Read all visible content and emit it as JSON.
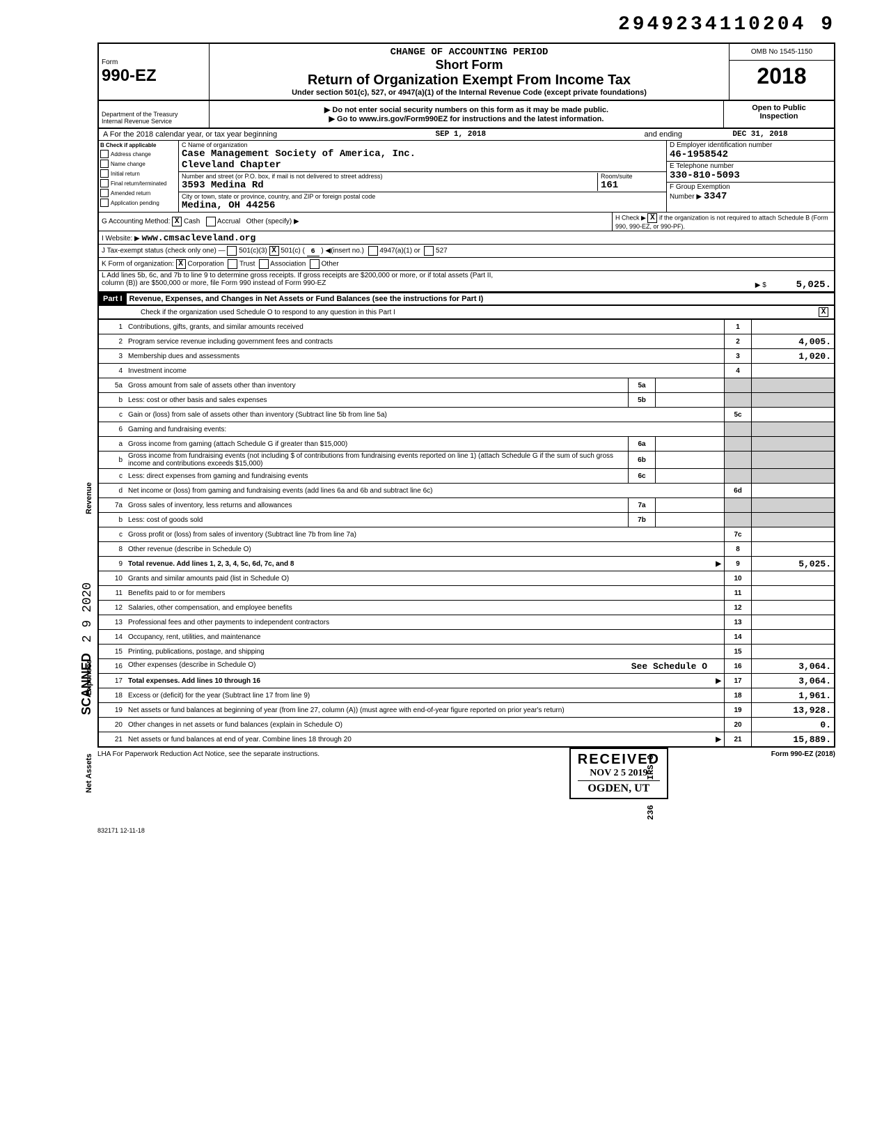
{
  "top_number": "2949234110204 9",
  "form": {
    "prefix": "Form",
    "number": "990-EZ",
    "change_line": "CHANGE OF ACCOUNTING PERIOD",
    "short_form": "Short Form",
    "title": "Return of Organization Exempt From Income Tax",
    "under": "Under section 501(c), 527, or 4947(a)(1) of the Internal Revenue Code (except private foundations)",
    "warn": "▶ Do not enter social security numbers on this form as it may be made public.",
    "goto": "▶ Go to www.irs.gov/Form990EZ for instructions and the latest information.",
    "omb": "OMB No 1545-1150",
    "year": "2018",
    "open": "Open to Public",
    "inspection": "Inspection",
    "dept1": "Department of the Treasury",
    "dept2": "Internal Revenue Service"
  },
  "line_a": {
    "label": "A  For the 2018 calendar year, or tax year beginning",
    "begin": "SEP 1, 2018",
    "and_ending": "and ending",
    "end": "DEC 31, 2018"
  },
  "block_b": {
    "header": "B  Check if applicable",
    "checks": [
      "Address change",
      "Name change",
      "Initial return",
      "Final return/terminated",
      "Amended return",
      "Application pending"
    ],
    "c_label": "C Name of organization",
    "org_name": "Case Management Society of America, Inc.",
    "chapter": "Cleveland Chapter",
    "addr_label": "Number and street (or P.O. box, if mail is not delivered to street address)",
    "addr": "3593 Medina Rd",
    "room_label": "Room/suite",
    "room": "161",
    "city_label": "City or town, state or province, country, and ZIP or foreign postal code",
    "city": "Medina, OH  44256",
    "d_label": "D Employer identification number",
    "ein": "46-1958542",
    "e_label": "E Telephone number",
    "phone": "330-810-5093",
    "f_label": "F Group Exemption",
    "f_num_label": "Number ▶",
    "f_num": "3347"
  },
  "lines": {
    "g": "G  Accounting Method:",
    "g_cash": "Cash",
    "g_accrual": "Accrual",
    "g_other": "Other (specify) ▶",
    "h": "H Check ▶",
    "h_rest": "if the organization is not required to attach Schedule B (Form 990, 990-EZ, or 990-PF).",
    "i": "I   Website: ▶",
    "i_val": "www.cmsacleveland.org",
    "j": "J   Tax-exempt status (check only one) —",
    "j_501c3": "501(c)(3)",
    "j_501c": "501(c) (",
    "j_501c_n": "6",
    "j_insert": ") ◀(insert no.)",
    "j_4947": "4947(a)(1) or",
    "j_527": "527",
    "k": "K  Form of organization:",
    "k_corp": "Corporation",
    "k_trust": "Trust",
    "k_assoc": "Association",
    "k_other": "Other",
    "l1": "L  Add lines 5b, 6c, and 7b to line 9 to determine gross receipts. If gross receipts are $200,000 or more, or if total assets (Part II,",
    "l2": "column (B)) are $500,000 or more, file Form 990 instead of Form 990-EZ",
    "l_arrow": "▶  $",
    "l_amt": "5,025."
  },
  "part1": {
    "label": "Part I",
    "title": "Revenue, Expenses, and Changes in Net Assets or Fund Balances (see the instructions for Part I)",
    "check_line": "Check if the organization used Schedule O to respond to any question in this Part I",
    "check_x": "X"
  },
  "revenue_label": "Revenue",
  "expenses_label": "Expenses",
  "netassets_label": "Net Assets",
  "rows": [
    {
      "n": "1",
      "t": "Contributions, gifts, grants, and similar amounts received",
      "r": "1",
      "a": ""
    },
    {
      "n": "2",
      "t": "Program service revenue including government fees and contracts",
      "r": "2",
      "a": "4,005."
    },
    {
      "n": "3",
      "t": "Membership dues and assessments",
      "r": "3",
      "a": "1,020."
    },
    {
      "n": "4",
      "t": "Investment income",
      "r": "4",
      "a": ""
    },
    {
      "n": "5a",
      "t": "Gross amount from sale of assets other than inventory",
      "mid": "5a"
    },
    {
      "n": "b",
      "t": "Less: cost or other basis and sales expenses",
      "mid": "5b"
    },
    {
      "n": "c",
      "t": "Gain or (loss) from sale of assets other than inventory (Subtract line 5b from line 5a)",
      "r": "5c",
      "a": ""
    },
    {
      "n": "6",
      "t": "Gaming and fundraising events:"
    },
    {
      "n": "a",
      "t": "Gross income from gaming (attach Schedule G if greater than $15,000)",
      "mid": "6a"
    },
    {
      "n": "b",
      "t": "Gross income from fundraising events (not including $                     of contributions from fundraising events reported on line 1) (attach Schedule G if the sum of such gross income and contributions exceeds $15,000)",
      "mid": "6b"
    },
    {
      "n": "c",
      "t": "Less: direct expenses from gaming and fundraising events",
      "mid": "6c"
    },
    {
      "n": "d",
      "t": "Net income or (loss) from gaming and fundraising events (add lines 6a and 6b and subtract line 6c)",
      "r": "6d",
      "a": ""
    },
    {
      "n": "7a",
      "t": "Gross sales of inventory, less returns and allowances",
      "mid": "7a"
    },
    {
      "n": "b",
      "t": "Less: cost of goods sold",
      "mid": "7b"
    },
    {
      "n": "c",
      "t": "Gross profit or (loss) from sales of inventory (Subtract line 7b from line 7a)",
      "r": "7c",
      "a": ""
    },
    {
      "n": "8",
      "t": "Other revenue (describe in Schedule O)",
      "r": "8",
      "a": ""
    },
    {
      "n": "9",
      "t": "Total revenue. Add lines 1, 2, 3, 4, 5c, 6d, 7c, and 8",
      "r": "9",
      "a": "5,025.",
      "arrow": "▶",
      "bold": true
    },
    {
      "n": "10",
      "t": "Grants and similar amounts paid (list in Schedule O)",
      "r": "10",
      "a": ""
    },
    {
      "n": "11",
      "t": "Benefits paid to or for members",
      "r": "11",
      "a": ""
    },
    {
      "n": "12",
      "t": "Salaries, other compensation, and employee benefits",
      "r": "12",
      "a": ""
    },
    {
      "n": "13",
      "t": "Professional fees and other payments to independent contractors",
      "r": "13",
      "a": ""
    },
    {
      "n": "14",
      "t": "Occupancy, rent, utilities, and maintenance",
      "r": "14",
      "a": ""
    },
    {
      "n": "15",
      "t": "Printing, publications, postage, and shipping",
      "r": "15",
      "a": ""
    },
    {
      "n": "16",
      "t": "Other expenses (describe in Schedule O)",
      "extra": "See Schedule O",
      "r": "16",
      "a": "3,064."
    },
    {
      "n": "17",
      "t": "Total expenses. Add lines 10 through 16",
      "r": "17",
      "a": "3,064.",
      "arrow": "▶",
      "bold": true
    },
    {
      "n": "18",
      "t": "Excess or (deficit) for the year (Subtract line 17 from line 9)",
      "r": "18",
      "a": "1,961."
    },
    {
      "n": "19",
      "t": "Net assets or fund balances at beginning of year (from line 27, column (A)) (must agree with end-of-year figure reported on prior year's return)",
      "r": "19",
      "a": "13,928."
    },
    {
      "n": "20",
      "t": "Other changes in net assets or fund balances (explain in Schedule O)",
      "r": "20",
      "a": "0."
    },
    {
      "n": "21",
      "t": "Net assets or fund balances at end of year. Combine lines 18 through 20",
      "r": "21",
      "a": "15,889.",
      "arrow": "▶"
    }
  ],
  "footer": {
    "lha": "LHA  For Paperwork Reduction Act Notice, see the separate instructions.",
    "form": "Form 990-EZ (2018)",
    "code": "832171  12-11-18"
  },
  "stamp": {
    "received": "RECEIVED",
    "date": "NOV 2 5 2019",
    "place": "OGDEN, UT",
    "side_num": "236",
    "irs": "IRS-O"
  },
  "scanned": {
    "text": "SCANNED",
    "date": "2 9 2020"
  }
}
